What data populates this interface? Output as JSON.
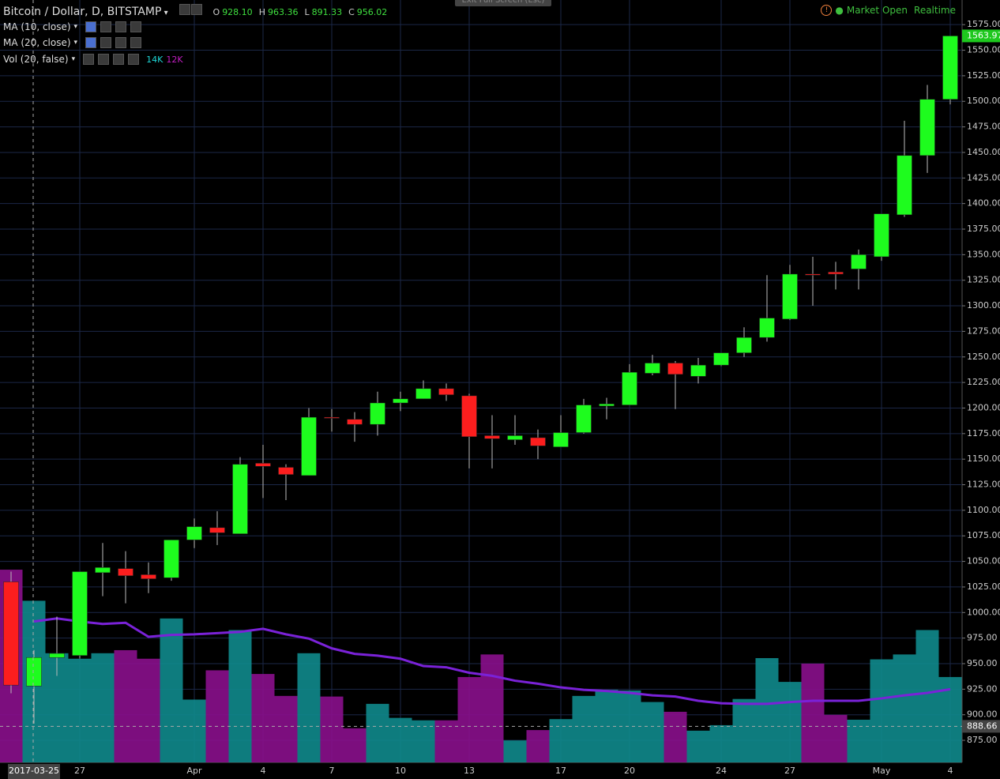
{
  "chart_data": {
    "type": "candlestick",
    "title": "Bitcoin / Dollar, D, BITSTAMP",
    "ohlc_header": [
      {
        "key": "O",
        "value": "928.10"
      },
      {
        "key": "H",
        "value": "963.36"
      },
      {
        "key": "L",
        "value": "891.33"
      },
      {
        "key": "C",
        "value": "956.02"
      }
    ],
    "indicators": [
      "MA (10, close)",
      "MA (20, close)",
      "Vol (20, false)"
    ],
    "volume_legend": [
      "14K",
      "12K"
    ],
    "status": [
      "Market Open",
      "Realtime"
    ],
    "exit_button": "Exit Full Screen (Esc)",
    "categories": [
      null,
      null,
      null,
      "27",
      null,
      null,
      null,
      null,
      "Apr",
      null,
      null,
      "4",
      null,
      null,
      "7",
      null,
      null,
      "10",
      null,
      null,
      "13",
      null,
      null,
      null,
      "17",
      null,
      null,
      "20",
      null,
      null,
      null,
      "24",
      null,
      null,
      "27",
      null,
      null,
      null,
      "May",
      null,
      null,
      "4"
    ],
    "open": [
      1030,
      928.1,
      956,
      958,
      1039,
      1043,
      1037,
      1034,
      1071,
      1083,
      1077,
      1146,
      1142,
      1134,
      1191,
      1189,
      1184,
      1205,
      1209,
      1219,
      1212,
      1173,
      1169,
      1171,
      1162,
      1176,
      1202,
      1203,
      1234,
      1244,
      1231,
      1242,
      1254,
      1269,
      1287,
      1331,
      1333,
      1336,
      1348,
      1389,
      1447,
      1502
    ],
    "high": [
      1040,
      963.36,
      996,
      1040,
      1068,
      1060,
      1049,
      1071,
      1092,
      1099,
      1152,
      1164,
      1145,
      1200,
      1199,
      1196,
      1216,
      1216,
      1227,
      1224,
      1214,
      1193,
      1193,
      1179,
      1193,
      1209,
      1210,
      1243,
      1252,
      1246,
      1249,
      1254,
      1279,
      1330,
      1340,
      1348,
      1343,
      1355,
      1390,
      1481,
      1516,
      1564
    ],
    "low": [
      921,
      891.33,
      938,
      955,
      1016,
      1009,
      1019,
      1031,
      1063,
      1066,
      1077,
      1112,
      1110,
      1134,
      1177,
      1167,
      1173,
      1197,
      1209,
      1207,
      1141,
      1141,
      1164,
      1150,
      1162,
      1175,
      1189,
      1203,
      1232,
      1199,
      1224,
      1241,
      1250,
      1265,
      1286,
      1300,
      1316,
      1316,
      1344,
      1387,
      1430,
      1497
    ],
    "close": [
      929,
      956.02,
      960,
      1040,
      1044,
      1036,
      1033,
      1071,
      1084,
      1078,
      1145,
      1143,
      1135,
      1191,
      1190,
      1184,
      1205,
      1209,
      1219,
      1213,
      1172,
      1170,
      1173,
      1163,
      1176,
      1203,
      1204,
      1235,
      1244,
      1233,
      1242,
      1254,
      1269,
      1288,
      1331,
      1330,
      1331,
      1350,
      1390,
      1447,
      1502,
      1563.97
    ],
    "volume": [
      31.6,
      26.5,
      17.9,
      17.0,
      17.9,
      18.4,
      17.0,
      23.6,
      10.3,
      15.1,
      21.7,
      14.5,
      10.9,
      17.9,
      10.8,
      5.6,
      9.6,
      7.3,
      6.9,
      6.9,
      14.0,
      17.7,
      3.6,
      5.3,
      7.1,
      10.9,
      11.9,
      11.8,
      9.9,
      8.3,
      5.2,
      6.1,
      10.4,
      17.1,
      13.2,
      16.2,
      7.8,
      7.0,
      16.9,
      17.7,
      21.7,
      14.0
    ],
    "volume_ma": [
      null,
      23.1,
      23.6,
      23.1,
      22.7,
      22.9,
      20.6,
      20.9,
      21.0,
      21.2,
      21.4,
      21.9,
      21.0,
      20.3,
      18.7,
      17.8,
      17.5,
      17.0,
      15.8,
      15.6,
      14.7,
      14.2,
      13.4,
      12.9,
      12.3,
      11.9,
      11.7,
      11.4,
      11.0,
      10.8,
      10.1,
      9.7,
      9.6,
      9.6,
      9.9,
      10.1,
      10.1,
      10.1,
      10.5,
      11.0,
      11.4,
      12.0
    ],
    "up_color": "#1efc1e",
    "down_color": "#fc1e1e",
    "volume_up_color": "#0f8a8c",
    "volume_down_color": "#8a0f8c",
    "volume_ma_color": "#7a22d8",
    "ylim": [
      853.4,
      1599.1
    ],
    "vol_ylim": [
      0,
      125
    ],
    "yticks": [
      {
        "value": 875,
        "label": "875.00"
      },
      {
        "value": 900,
        "label": "900.00"
      },
      {
        "value": 925,
        "label": "925.00"
      },
      {
        "value": 950,
        "label": "950.00"
      },
      {
        "value": 975,
        "label": "975.00"
      },
      {
        "value": 1000,
        "label": "1000.00"
      },
      {
        "value": 1025,
        "label": "1025.00"
      },
      {
        "value": 1050,
        "label": "1050.00"
      },
      {
        "value": 1075,
        "label": "1075.00"
      },
      {
        "value": 1100,
        "label": "1100.00"
      },
      {
        "value": 1125,
        "label": "1125.00"
      },
      {
        "value": 1150,
        "label": "1150.00"
      },
      {
        "value": 1175,
        "label": "1175.00"
      },
      {
        "value": 1200,
        "label": "1200.00"
      },
      {
        "value": 1225,
        "label": "1225.00"
      },
      {
        "value": 1250,
        "label": "1250.00"
      },
      {
        "value": 1275,
        "label": "1275.00"
      },
      {
        "value": 1300,
        "label": "1300.00"
      },
      {
        "value": 1325,
        "label": "1325.00"
      },
      {
        "value": 1350,
        "label": "1350.00"
      },
      {
        "value": 1375,
        "label": "1375.00"
      },
      {
        "value": 1400,
        "label": "1400.00"
      },
      {
        "value": 1425,
        "label": "1425.00"
      },
      {
        "value": 1450,
        "label": "1450.00"
      },
      {
        "value": 1475,
        "label": "1475.00"
      },
      {
        "value": 1500,
        "label": "1500.00"
      },
      {
        "value": 1525,
        "label": "1525.00"
      },
      {
        "value": 1550,
        "label": "1550.00"
      },
      {
        "value": 1575,
        "label": "1575.00"
      }
    ],
    "last_price": 1563.97,
    "crosshair": {
      "date": "2017-03-25",
      "index": 1,
      "price": 888.66
    },
    "grid": true
  }
}
